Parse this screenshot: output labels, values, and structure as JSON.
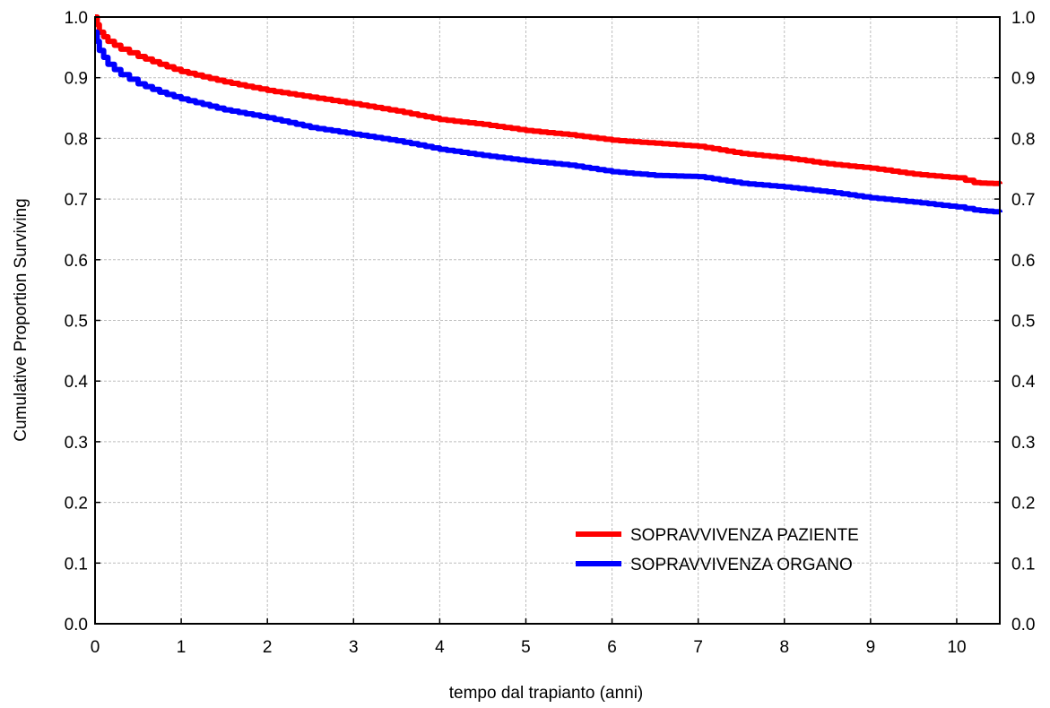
{
  "chart_data": {
    "type": "line",
    "title": "",
    "xlabel": "tempo dal trapianto (anni)",
    "ylabel": "Cumulative Proportion Surviving",
    "xlim": [
      0,
      10.5
    ],
    "ylim": [
      0,
      1.0
    ],
    "x_ticks": [
      "0",
      "1",
      "2",
      "3",
      "4",
      "5",
      "6",
      "7",
      "8",
      "9",
      "10"
    ],
    "y_ticks": [
      "0.0",
      "0.1",
      "0.2",
      "0.3",
      "0.4",
      "0.5",
      "0.6",
      "0.7",
      "0.8",
      "0.9",
      "1.0"
    ],
    "grid": true,
    "legend": "bottom-right",
    "series": [
      {
        "name": "SOPRAVVIVENZA PAZIENTE",
        "color": "#ff0000",
        "x": [
          0,
          0.05,
          0.15,
          0.3,
          0.5,
          0.75,
          1,
          1.5,
          2,
          2.5,
          3,
          3.5,
          4,
          4.5,
          5,
          5.5,
          6,
          6.5,
          7,
          7.5,
          8,
          8.5,
          9,
          9.5,
          10,
          10.2,
          10.5
        ],
        "y": [
          1.0,
          0.975,
          0.96,
          0.947,
          0.935,
          0.922,
          0.91,
          0.893,
          0.879,
          0.868,
          0.857,
          0.845,
          0.831,
          0.823,
          0.813,
          0.806,
          0.797,
          0.792,
          0.787,
          0.775,
          0.768,
          0.758,
          0.751,
          0.741,
          0.735,
          0.727,
          0.725
        ]
      },
      {
        "name": "SOPRAVVIVENZA ORGANO",
        "color": "#0000ff",
        "x": [
          0,
          0.05,
          0.15,
          0.3,
          0.5,
          0.75,
          1,
          1.5,
          2,
          2.5,
          3,
          3.5,
          4,
          4.5,
          5,
          5.5,
          6,
          6.5,
          7,
          7.5,
          8,
          8.5,
          9,
          9.5,
          10,
          10.2,
          10.5
        ],
        "y": [
          0.975,
          0.945,
          0.922,
          0.905,
          0.89,
          0.876,
          0.865,
          0.847,
          0.834,
          0.818,
          0.807,
          0.796,
          0.782,
          0.772,
          0.763,
          0.756,
          0.745,
          0.739,
          0.737,
          0.726,
          0.72,
          0.712,
          0.702,
          0.695,
          0.687,
          0.682,
          0.678
        ]
      }
    ]
  }
}
